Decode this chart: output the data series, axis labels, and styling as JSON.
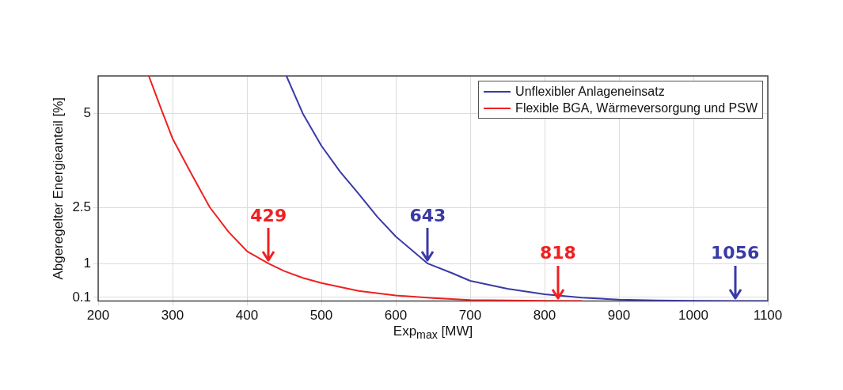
{
  "chart_data": {
    "type": "line",
    "xlabel": "Exp$_{max}$ [MW]",
    "ylabel": "Abgeregelter Energieanteil [%]",
    "xlim": [
      200,
      1100
    ],
    "xticks": [
      200,
      300,
      400,
      500,
      600,
      700,
      800,
      900,
      1000,
      1100
    ],
    "ylim": [
      0,
      6
    ],
    "yticks": [
      0.1,
      1,
      2.5,
      5
    ],
    "grid": true,
    "legend": "top right",
    "marker": "none",
    "line_style": "solid",
    "series": [
      {
        "name": "Unflexibler Anlageneinsatz",
        "color": "#3a3aa6",
        "x": [
          453,
          475,
          500,
          525,
          550,
          575,
          600,
          643,
          675,
          700,
          750,
          800,
          850,
          900,
          950,
          1000,
          1050,
          1100
        ],
        "values": [
          6,
          5.0,
          4.14,
          3.45,
          2.86,
          2.25,
          1.72,
          1.0,
          0.75,
          0.54,
          0.33,
          0.18,
          0.09,
          0.04,
          0.02,
          0.01,
          0,
          0
        ]
      },
      {
        "name": "Flexible BGA, Wärmeversorgung und PSW",
        "color": "#f02020",
        "x": [
          268,
          285,
          300,
          325,
          350,
          375,
          400,
          429,
          450,
          475,
          500,
          550,
          600,
          650,
          700,
          750,
          800,
          850
        ],
        "values": [
          6,
          5.1,
          4.33,
          3.4,
          2.5,
          1.85,
          1.33,
          1.0,
          0.8,
          0.62,
          0.48,
          0.27,
          0.15,
          0.08,
          0.03,
          0.02,
          0.01,
          0
        ]
      }
    ],
    "annotations": [
      {
        "text": "429",
        "x": 429,
        "y": 1
      },
      {
        "text": "643",
        "x": 643,
        "y": 1
      },
      {
        "text": "818",
        "x": 818,
        "y": 0
      },
      {
        "text": "1056",
        "x": 1056,
        "y": 0
      }
    ]
  }
}
